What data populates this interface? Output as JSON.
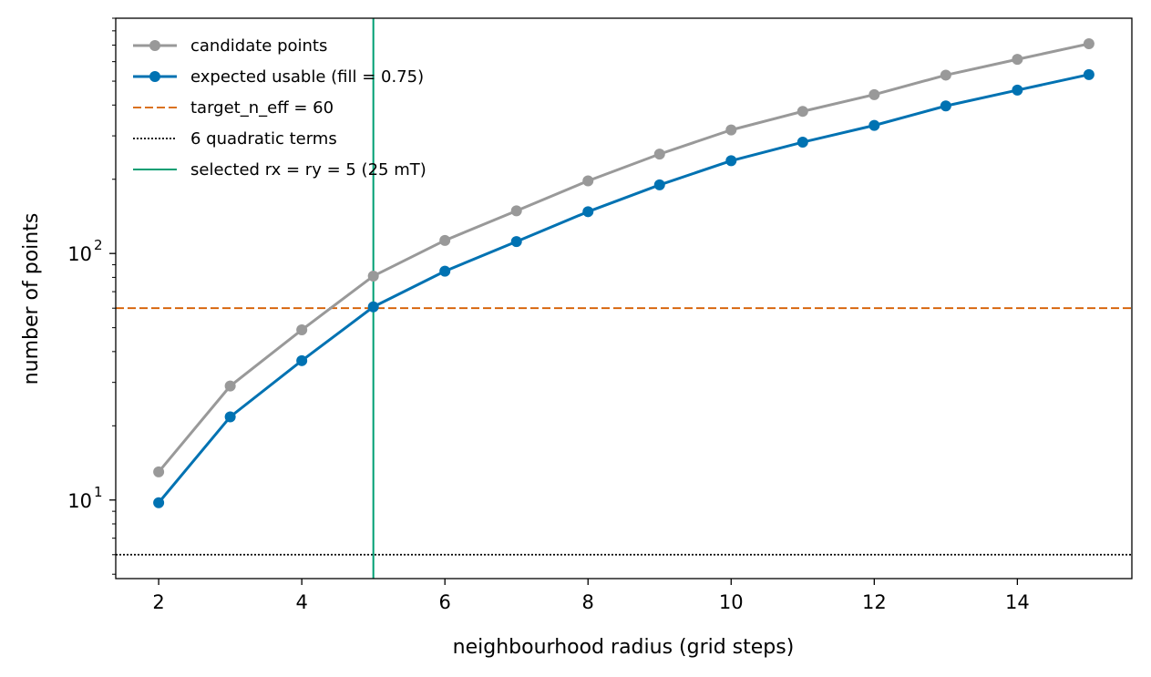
{
  "chart_data": {
    "type": "line",
    "title": "",
    "xlabel": "neighbourhood radius (grid steps)",
    "ylabel": "number of points",
    "yscale": "log",
    "xlim": [
      1.4,
      15.6
    ],
    "ylim": [
      4.8,
      900
    ],
    "x_ticks": [
      2,
      4,
      6,
      8,
      10,
      12,
      14
    ],
    "y_major_ticks": [
      {
        "value": 10,
        "base": "10",
        "exp": "1"
      },
      {
        "value": 100,
        "base": "10",
        "exp": "2"
      }
    ],
    "grid": false,
    "legend_position": "top-left",
    "x": [
      2,
      3,
      4,
      5,
      6,
      7,
      8,
      9,
      10,
      11,
      12,
      13,
      14,
      15
    ],
    "series": [
      {
        "name": "candidate points",
        "color": "#999999",
        "values": [
          13,
          29,
          49,
          81,
          113,
          149,
          197,
          253,
          317,
          377,
          441,
          529,
          613,
          709
        ]
      },
      {
        "name": "expected usable (fill = 0.75)",
        "color": "#0072b2",
        "values": [
          9.75,
          21.75,
          36.75,
          60.75,
          84.75,
          111.75,
          147.75,
          189.75,
          237.75,
          282.75,
          330.75,
          396.75,
          459.75,
          531.75
        ]
      }
    ],
    "reference_lines": [
      {
        "name": "target_n_eff = 60",
        "orientation": "horizontal",
        "value": 60,
        "color": "#d55e00",
        "style": "dashed"
      },
      {
        "name": "6 quadratic terms",
        "orientation": "horizontal",
        "value": 6,
        "color": "#000000",
        "style": "dotted"
      },
      {
        "name": "selected rx = ry = 5 (25 mT)",
        "orientation": "vertical",
        "value": 5,
        "color": "#009e73",
        "style": "solid"
      }
    ]
  }
}
